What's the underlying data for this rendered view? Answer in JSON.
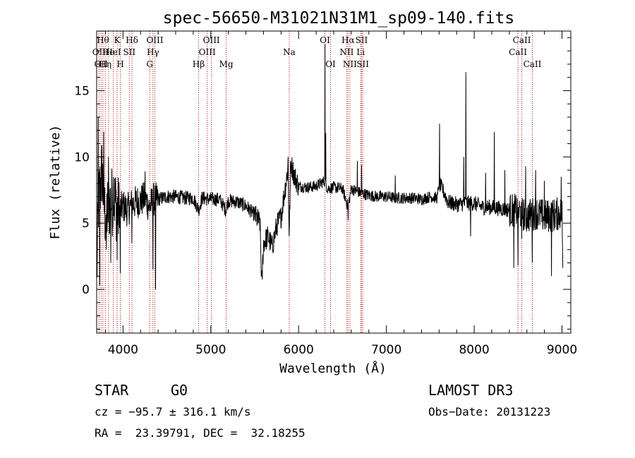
{
  "chart_data": {
    "type": "line",
    "title": "spec-56650-M31021N31M1_sp09-140.fits",
    "xlabel": "Wavelength (Å)",
    "ylabel": "Flux (relative)",
    "xlim": [
      3700,
      9100
    ],
    "ylim": [
      -3.3,
      19.5
    ],
    "xticks": [
      4000,
      5000,
      6000,
      7000,
      8000,
      9000
    ],
    "yticks": [
      0,
      5,
      10,
      15
    ],
    "spectrum_anchors": [
      [
        3700,
        0.5
      ],
      [
        3720,
        6.5
      ],
      [
        3760,
        9.0
      ],
      [
        3790,
        6.0
      ],
      [
        3800,
        5.5
      ],
      [
        3850,
        6.5
      ],
      [
        3900,
        6.8
      ],
      [
        3950,
        5.8
      ],
      [
        4000,
        6.3
      ],
      [
        4050,
        6.0
      ],
      [
        4100,
        6.4
      ],
      [
        4150,
        6.6
      ],
      [
        4200,
        6.7
      ],
      [
        4250,
        6.9
      ],
      [
        4300,
        6.2
      ],
      [
        4350,
        6.8
      ],
      [
        4400,
        6.8
      ],
      [
        4500,
        7.0
      ],
      [
        4600,
        7.0
      ],
      [
        4700,
        6.9
      ],
      [
        4800,
        6.9
      ],
      [
        4862,
        6.0
      ],
      [
        4900,
        6.9
      ],
      [
        5000,
        6.8
      ],
      [
        5100,
        6.8
      ],
      [
        5170,
        6.0
      ],
      [
        5200,
        6.7
      ],
      [
        5300,
        6.6
      ],
      [
        5400,
        6.3
      ],
      [
        5500,
        5.6
      ],
      [
        5560,
        5.0
      ],
      [
        5580,
        0.2
      ],
      [
        5600,
        3.5
      ],
      [
        5650,
        4.0
      ],
      [
        5700,
        3.2
      ],
      [
        5750,
        4.8
      ],
      [
        5800,
        5.5
      ],
      [
        5850,
        7.8
      ],
      [
        5880,
        9.2
      ],
      [
        5893,
        4.0
      ],
      [
        5910,
        9.6
      ],
      [
        5950,
        8.6
      ],
      [
        6000,
        7.8
      ],
      [
        6100,
        7.7
      ],
      [
        6200,
        7.8
      ],
      [
        6300,
        8.2
      ],
      [
        6330,
        7.6
      ],
      [
        6400,
        7.7
      ],
      [
        6500,
        7.6
      ],
      [
        6563,
        6.2
      ],
      [
        6600,
        7.6
      ],
      [
        6700,
        7.3
      ],
      [
        6800,
        7.1
      ],
      [
        6900,
        7.0
      ],
      [
        7000,
        7.0
      ],
      [
        7100,
        6.9
      ],
      [
        7200,
        6.9
      ],
      [
        7300,
        6.9
      ],
      [
        7400,
        6.8
      ],
      [
        7500,
        7.0
      ],
      [
        7580,
        6.9
      ],
      [
        7600,
        8.0
      ],
      [
        7650,
        7.4
      ],
      [
        7700,
        6.6
      ],
      [
        7800,
        6.4
      ],
      [
        7900,
        6.5
      ],
      [
        8000,
        6.5
      ],
      [
        8100,
        6.2
      ],
      [
        8200,
        6.2
      ],
      [
        8300,
        6.1
      ],
      [
        8400,
        6.0
      ],
      [
        8500,
        5.9
      ],
      [
        8600,
        5.5
      ],
      [
        8700,
        5.8
      ],
      [
        8800,
        5.5
      ],
      [
        8900,
        5.6
      ],
      [
        9000,
        5.8
      ],
      [
        9010,
        1.0
      ]
    ],
    "spectrum_spikes": [
      [
        3718,
        13.0
      ],
      [
        3735,
        0.3
      ],
      [
        3780,
        11.9
      ],
      [
        3810,
        3.0
      ],
      [
        3835,
        10.0
      ],
      [
        3860,
        2.0
      ],
      [
        3890,
        8.5
      ],
      [
        3933,
        2.2
      ],
      [
        3968,
        1.2
      ],
      [
        4102,
        3.5
      ],
      [
        4250,
        8.9
      ],
      [
        4340,
        1.5
      ],
      [
        4370,
        0.0
      ],
      [
        5880,
        10.0
      ],
      [
        6300,
        18.5
      ],
      [
        6310,
        11.8
      ],
      [
        6563,
        5.2
      ],
      [
        6670,
        9.7
      ],
      [
        6717,
        9.4
      ],
      [
        7100,
        8.6
      ],
      [
        7605,
        12.5
      ],
      [
        7880,
        10.0
      ],
      [
        7905,
        16.4
      ],
      [
        7960,
        4.0
      ],
      [
        8130,
        8.8
      ],
      [
        8230,
        11.9
      ],
      [
        8350,
        9.0
      ],
      [
        8450,
        1.6
      ],
      [
        8498,
        1.8
      ],
      [
        8542,
        3.8
      ],
      [
        8585,
        9.3
      ],
      [
        8662,
        2.0
      ],
      [
        8700,
        9.0
      ],
      [
        8800,
        8.2
      ],
      [
        8880,
        1.0
      ],
      [
        8990,
        8.5
      ]
    ],
    "lines": [
      {
        "wave": 3727,
        "label": "OII",
        "row": 2
      },
      {
        "wave": 3750,
        "label": "OII",
        "row": 3
      },
      {
        "wave": 3771,
        "label": "Hθ",
        "row": 1
      },
      {
        "wave": 3798,
        "label": "Hη",
        "row": 3
      },
      {
        "wave": 3835,
        "label": "He",
        "row": 2
      },
      {
        "wave": 3889,
        "label": "HeI",
        "row": 2
      },
      {
        "wave": 3933,
        "label": "K",
        "row": 1
      },
      {
        "wave": 3970,
        "label": "H",
        "row": 3
      },
      {
        "wave": 4072,
        "label": "SII",
        "row": 2
      },
      {
        "wave": 4102,
        "label": "Hδ",
        "row": 1
      },
      {
        "wave": 4304,
        "label": "G",
        "row": 3
      },
      {
        "wave": 4341,
        "label": "Hγ",
        "row": 2
      },
      {
        "wave": 4363,
        "label": "OIII",
        "row": 1
      },
      {
        "wave": 4861,
        "label": "Hβ",
        "row": 3
      },
      {
        "wave": 4959,
        "label": "OIII",
        "row": 2
      },
      {
        "wave": 5007,
        "label": "OIII",
        "row": 1
      },
      {
        "wave": 5175,
        "label": "Mg",
        "row": 3
      },
      {
        "wave": 5893,
        "label": "Na",
        "row": 2
      },
      {
        "wave": 6300,
        "label": "OI",
        "row": 1
      },
      {
        "wave": 6364,
        "label": "OI",
        "row": 3
      },
      {
        "wave": 6548,
        "label": "NII",
        "row": 2
      },
      {
        "wave": 6563,
        "label": "Hα",
        "row": 1
      },
      {
        "wave": 6584,
        "label": "NII",
        "row": 3
      },
      {
        "wave": 6707,
        "label": "Li",
        "row": 2
      },
      {
        "wave": 6717,
        "label": "SII",
        "row": 1
      },
      {
        "wave": 6731,
        "label": "SII",
        "row": 3
      },
      {
        "wave": 8498,
        "label": "CaII",
        "row": 2
      },
      {
        "wave": 8542,
        "label": "CaII",
        "row": 1
      },
      {
        "wave": 8662,
        "label": "CaII",
        "row": 3
      }
    ]
  },
  "info": {
    "class": "STAR",
    "subclass": "G0",
    "survey": "LAMOST DR3",
    "cz": "cz = −95.7 ± 316.1 km/s",
    "obs_date": "Obs−Date: 20131223",
    "coords": "RA =  23.39791, DEC =  32.18255"
  }
}
